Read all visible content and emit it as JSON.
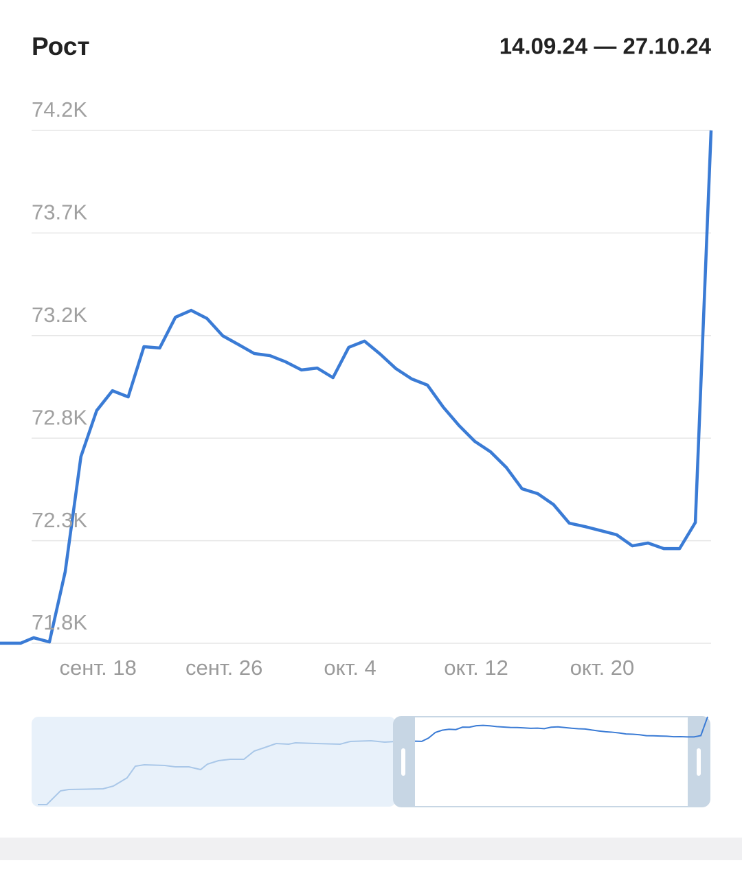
{
  "chart_data": {
    "type": "line",
    "title": "Рост",
    "date_range": "14.09.24 — 27.10.24",
    "x": [
      "2024-09-14",
      "2024-09-15",
      "2024-09-16",
      "2024-09-17",
      "2024-09-18",
      "2024-09-19",
      "2024-09-20",
      "2024-09-21",
      "2024-09-22",
      "2024-09-23",
      "2024-09-24",
      "2024-09-25",
      "2024-09-26",
      "2024-09-27",
      "2024-09-28",
      "2024-09-29",
      "2024-09-30",
      "2024-10-01",
      "2024-10-02",
      "2024-10-03",
      "2024-10-04",
      "2024-10-05",
      "2024-10-06",
      "2024-10-07",
      "2024-10-08",
      "2024-10-09",
      "2024-10-10",
      "2024-10-11",
      "2024-10-12",
      "2024-10-13",
      "2024-10-14",
      "2024-10-15",
      "2024-10-16",
      "2024-10-17",
      "2024-10-18",
      "2024-10-19",
      "2024-10-20",
      "2024-10-21",
      "2024-10-22",
      "2024-10-23",
      "2024-10-24",
      "2024-10-25",
      "2024-10-26",
      "2024-10-27"
    ],
    "series": [
      {
        "color": "#3a7bd5",
        "values": [
          71826,
          71806,
          72134,
          72674,
          72889,
          72982,
          72953,
          73188,
          73182,
          73326,
          73358,
          73320,
          73239,
          73198,
          73156,
          73146,
          73117,
          73079,
          73088,
          73043,
          73185,
          73214,
          73153,
          73085,
          73037,
          73008,
          72905,
          72819,
          72745,
          72696,
          72623,
          72523,
          72500,
          72449,
          72362,
          72346,
          72327,
          72308,
          72256,
          72269,
          72243,
          72243,
          72365,
          74200
        ]
      }
    ],
    "xticks": [
      {
        "value": "2024-09-18",
        "label": "сент. 18"
      },
      {
        "value": "2024-09-26",
        "label": "сент. 26"
      },
      {
        "value": "2024-10-04",
        "label": "окт. 4"
      },
      {
        "value": "2024-10-12",
        "label": "окт. 12"
      },
      {
        "value": "2024-10-20",
        "label": "окт. 20"
      }
    ],
    "ylim": [
      71800,
      74200
    ],
    "yticks": [
      {
        "value": 71800,
        "label": "71.8K"
      },
      {
        "value": 72280,
        "label": "72.3K"
      },
      {
        "value": 72760,
        "label": "72.8K"
      },
      {
        "value": 73240,
        "label": "73.2K"
      },
      {
        "value": 73720,
        "label": "73.7K"
      },
      {
        "value": 74200,
        "label": "74.2K"
      }
    ],
    "grid": true
  }
}
